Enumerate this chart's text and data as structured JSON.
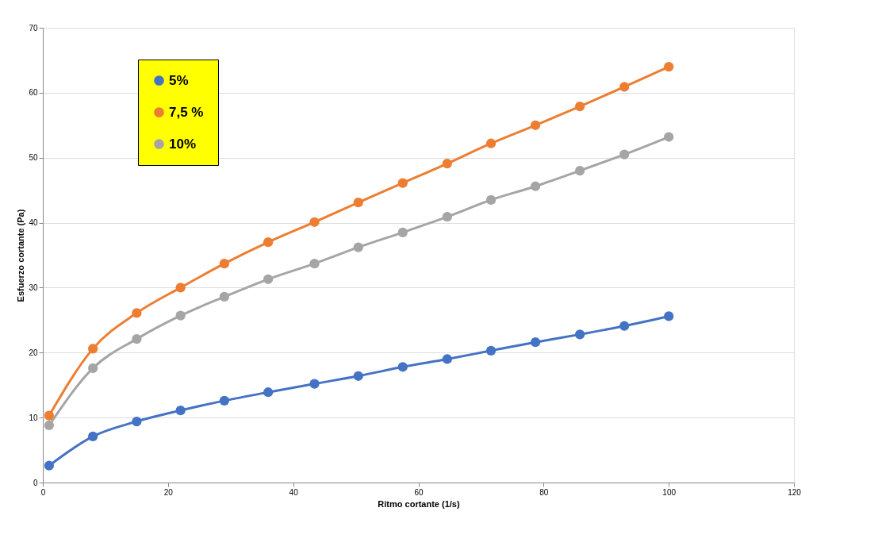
{
  "chart_data": {
    "type": "line",
    "xlabel": "Ritmo cortante (1/s)",
    "ylabel": "Esfuerzo cortante (Pa)",
    "x": [
      1,
      8,
      15,
      22,
      29,
      36,
      43.4,
      50.4,
      57.5,
      64.6,
      71.6,
      78.7,
      85.8,
      92.9,
      100
    ],
    "series": [
      {
        "name": "5%",
        "color": "#4472c4",
        "values": [
          2.6,
          7.1,
          9.4,
          11.1,
          12.6,
          13.9,
          15.2,
          16.4,
          17.8,
          19.0,
          20.3,
          21.6,
          22.8,
          24.1,
          25.6
        ]
      },
      {
        "name": "7,5 %",
        "color": "#ed7d31",
        "values": [
          10.3,
          20.6,
          26.1,
          30.0,
          33.7,
          37.0,
          40.1,
          43.1,
          46.1,
          49.1,
          52.2,
          55.0,
          57.9,
          60.9,
          64.0
        ]
      },
      {
        "name": "10%",
        "color": "#a5a5a5",
        "values": [
          8.8,
          17.6,
          22.1,
          25.7,
          28.6,
          31.3,
          33.7,
          36.2,
          38.5,
          40.9,
          43.5,
          45.6,
          48.0,
          50.5,
          53.2
        ]
      }
    ],
    "xlim": [
      0,
      120
    ],
    "xticks": [
      0,
      20,
      40,
      60,
      80,
      100,
      120
    ],
    "ylim": [
      0,
      70
    ],
    "yticks": [
      0,
      10,
      20,
      30,
      40,
      50,
      60,
      70
    ],
    "grid": "y",
    "legend": "top left",
    "marker": "circle",
    "line_style": "solid"
  }
}
